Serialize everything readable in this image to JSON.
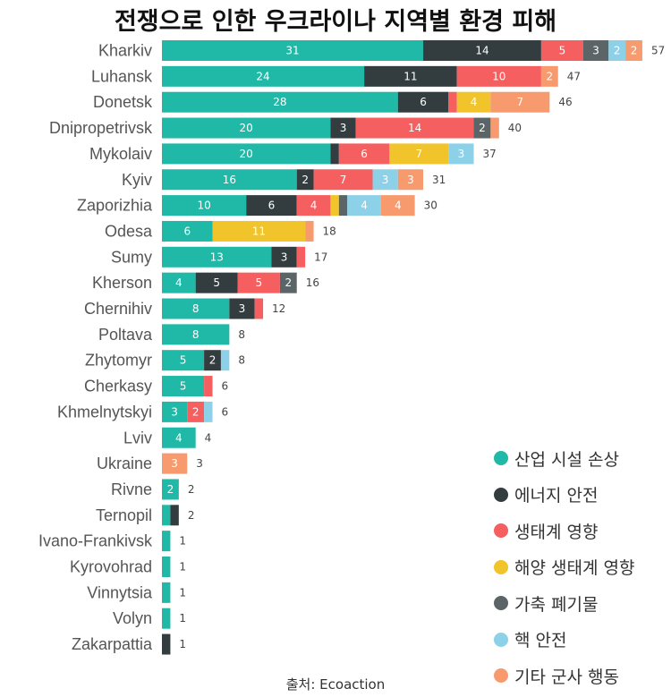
{
  "chart_data": {
    "type": "bar",
    "orientation": "horizontal",
    "stacked": true,
    "title": "전쟁으로 인한 우크라이나 지역별 환경 피해",
    "source": "출처: Ecoaction",
    "categories": [
      "Kharkiv",
      "Luhansk",
      "Donetsk",
      "Dnipropetrivsk",
      "Mykolaiv",
      "Kyiv",
      "Zaporizhia",
      "Odesa",
      "Sumy",
      "Kherson",
      "Chernihiv",
      "Poltava",
      "Zhytomyr",
      "Cherkasy",
      "Khmelnytskyi",
      "Lviv",
      "Ukraine",
      "Rivne",
      "Ternopil",
      "Ivano-Frankivsk",
      "Kyrovohrad",
      "Vinnytsia",
      "Volyn",
      "Zakarpattia"
    ],
    "totals": [
      57,
      47,
      46,
      40,
      37,
      31,
      30,
      18,
      17,
      16,
      12,
      8,
      8,
      6,
      6,
      4,
      3,
      2,
      2,
      1,
      1,
      1,
      1,
      1
    ],
    "series": [
      {
        "name": "산업 시설 손상",
        "color": "#20b8a6",
        "values": [
          31,
          24,
          28,
          20,
          20,
          16,
          10,
          6,
          13,
          4,
          8,
          8,
          5,
          5,
          3,
          4,
          0,
          2,
          1,
          1,
          1,
          1,
          1,
          0
        ]
      },
      {
        "name": "에너지 안전",
        "color": "#333d40",
        "values": [
          14,
          11,
          6,
          3,
          1,
          2,
          6,
          0,
          3,
          5,
          3,
          0,
          2,
          0,
          0,
          0,
          0,
          0,
          1,
          0,
          0,
          0,
          0,
          1
        ]
      },
      {
        "name": "생태계 영향",
        "color": "#f55f5f",
        "values": [
          5,
          10,
          1,
          14,
          6,
          7,
          4,
          0,
          1,
          5,
          1,
          0,
          0,
          1,
          2,
          0,
          0,
          0,
          0,
          0,
          0,
          0,
          0,
          0
        ]
      },
      {
        "name": "해양 생태계 영향",
        "color": "#f0c42a",
        "values": [
          0,
          0,
          4,
          0,
          7,
          0,
          1,
          11,
          0,
          0,
          0,
          0,
          0,
          0,
          0,
          0,
          0,
          0,
          0,
          0,
          0,
          0,
          0,
          0
        ]
      },
      {
        "name": "가축 폐기물",
        "color": "#5b6567",
        "values": [
          3,
          0,
          0,
          2,
          0,
          0,
          1,
          0,
          0,
          2,
          0,
          0,
          0,
          0,
          0,
          0,
          0,
          0,
          0,
          0,
          0,
          0,
          0,
          0
        ]
      },
      {
        "name": "핵 안전",
        "color": "#8dd1e8",
        "values": [
          2,
          0,
          0,
          0,
          3,
          3,
          4,
          0,
          0,
          0,
          0,
          0,
          1,
          0,
          1,
          0,
          0,
          0,
          0,
          0,
          0,
          0,
          0,
          0
        ]
      },
      {
        "name": "기타 군사 행동",
        "color": "#f79a6e",
        "values": [
          2,
          2,
          7,
          1,
          0,
          3,
          4,
          1,
          0,
          0,
          0,
          0,
          0,
          0,
          0,
          0,
          3,
          0,
          0,
          0,
          0,
          0,
          0,
          0
        ]
      }
    ],
    "xlim": [
      0,
      57
    ],
    "grid": false,
    "legend_position": "bottom-right",
    "data_labels": "segment values shown where segment width allows; totals at bar end"
  }
}
